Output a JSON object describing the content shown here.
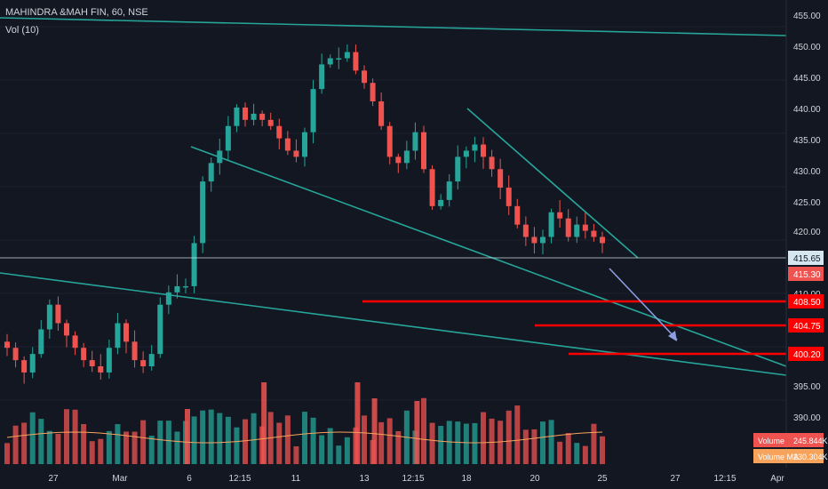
{
  "header": {
    "symbol_line": "MAHINDRA &MAH FIN, 60, NSE",
    "indicator_line": "Vol (10)"
  },
  "price_axis": {
    "ticks": [
      "455.00",
      "450.00",
      "445.00",
      "440.00",
      "435.00",
      "430.00",
      "425.00",
      "420.00",
      "410.00",
      "395.00",
      "390.00"
    ]
  },
  "price_labels": [
    {
      "value": "415.65",
      "kind": "last",
      "bg": "#d6e6f0",
      "fg": "#131722"
    },
    {
      "value": "415.30",
      "kind": "close",
      "bg": "#ef5350",
      "fg": "#ffffff"
    },
    {
      "value": "408.50",
      "kind": "level",
      "bg": "#ff0000",
      "fg": "#ffffff"
    },
    {
      "value": "404.75",
      "kind": "level",
      "bg": "#ff0000",
      "fg": "#ffffff"
    },
    {
      "value": "400.20",
      "kind": "level",
      "bg": "#ff0000",
      "fg": "#ffffff"
    }
  ],
  "volume_labels": [
    {
      "name": "Volume",
      "value": "245.844K",
      "bg": "#ef5350"
    },
    {
      "name": "Volume MA",
      "value": "230.304K",
      "bg": "#f7a35c"
    }
  ],
  "time_axis": {
    "ticks": [
      "27",
      "Mar",
      "6",
      "12:15",
      "11",
      "13",
      "12:15",
      "18",
      "20",
      "25",
      "27",
      "12:15",
      "Apr"
    ]
  },
  "colors": {
    "background": "#131722",
    "up": "#26a69a",
    "down": "#ef5350",
    "trendline": "#26a69a",
    "level": "#ff0000",
    "arrow": "#8c9ee0",
    "volume_ma": "#f7a35c",
    "grid": "#1e2230",
    "axis_text": "#d1d4dc"
  },
  "chart_data": {
    "type": "candlestick",
    "title": "MAHINDRA &MAH FIN, 60, NSE",
    "xlabel": "",
    "ylabel": "",
    "ylim": [
      390,
      455
    ],
    "grid": false,
    "x_tick_labels": [
      "27",
      "Mar",
      "6",
      "12:15",
      "11",
      "13",
      "12:15",
      "18",
      "20",
      "25",
      "27",
      "12:15",
      "Apr"
    ],
    "close_path": [
      401,
      399,
      397,
      400,
      404,
      408,
      405,
      403,
      401,
      399,
      398,
      397,
      401,
      405,
      402,
      399,
      398,
      400,
      408,
      410,
      411,
      411,
      418,
      428,
      431,
      433,
      437,
      440,
      438,
      439,
      438,
      437,
      435,
      433,
      432,
      436,
      443,
      447,
      448,
      448,
      449,
      446,
      444,
      441,
      437,
      432,
      431,
      433,
      436,
      430,
      424,
      425,
      428,
      432,
      433,
      434,
      432,
      430,
      427,
      424,
      421,
      419,
      418,
      419,
      423,
      422,
      419,
      421,
      420,
      419,
      418
    ],
    "last_price": 415.65,
    "last_close": 415.3,
    "levels": [
      408.5,
      404.75,
      400.2
    ],
    "volume": {
      "last": "245.844K",
      "ma": "230.304K"
    }
  }
}
